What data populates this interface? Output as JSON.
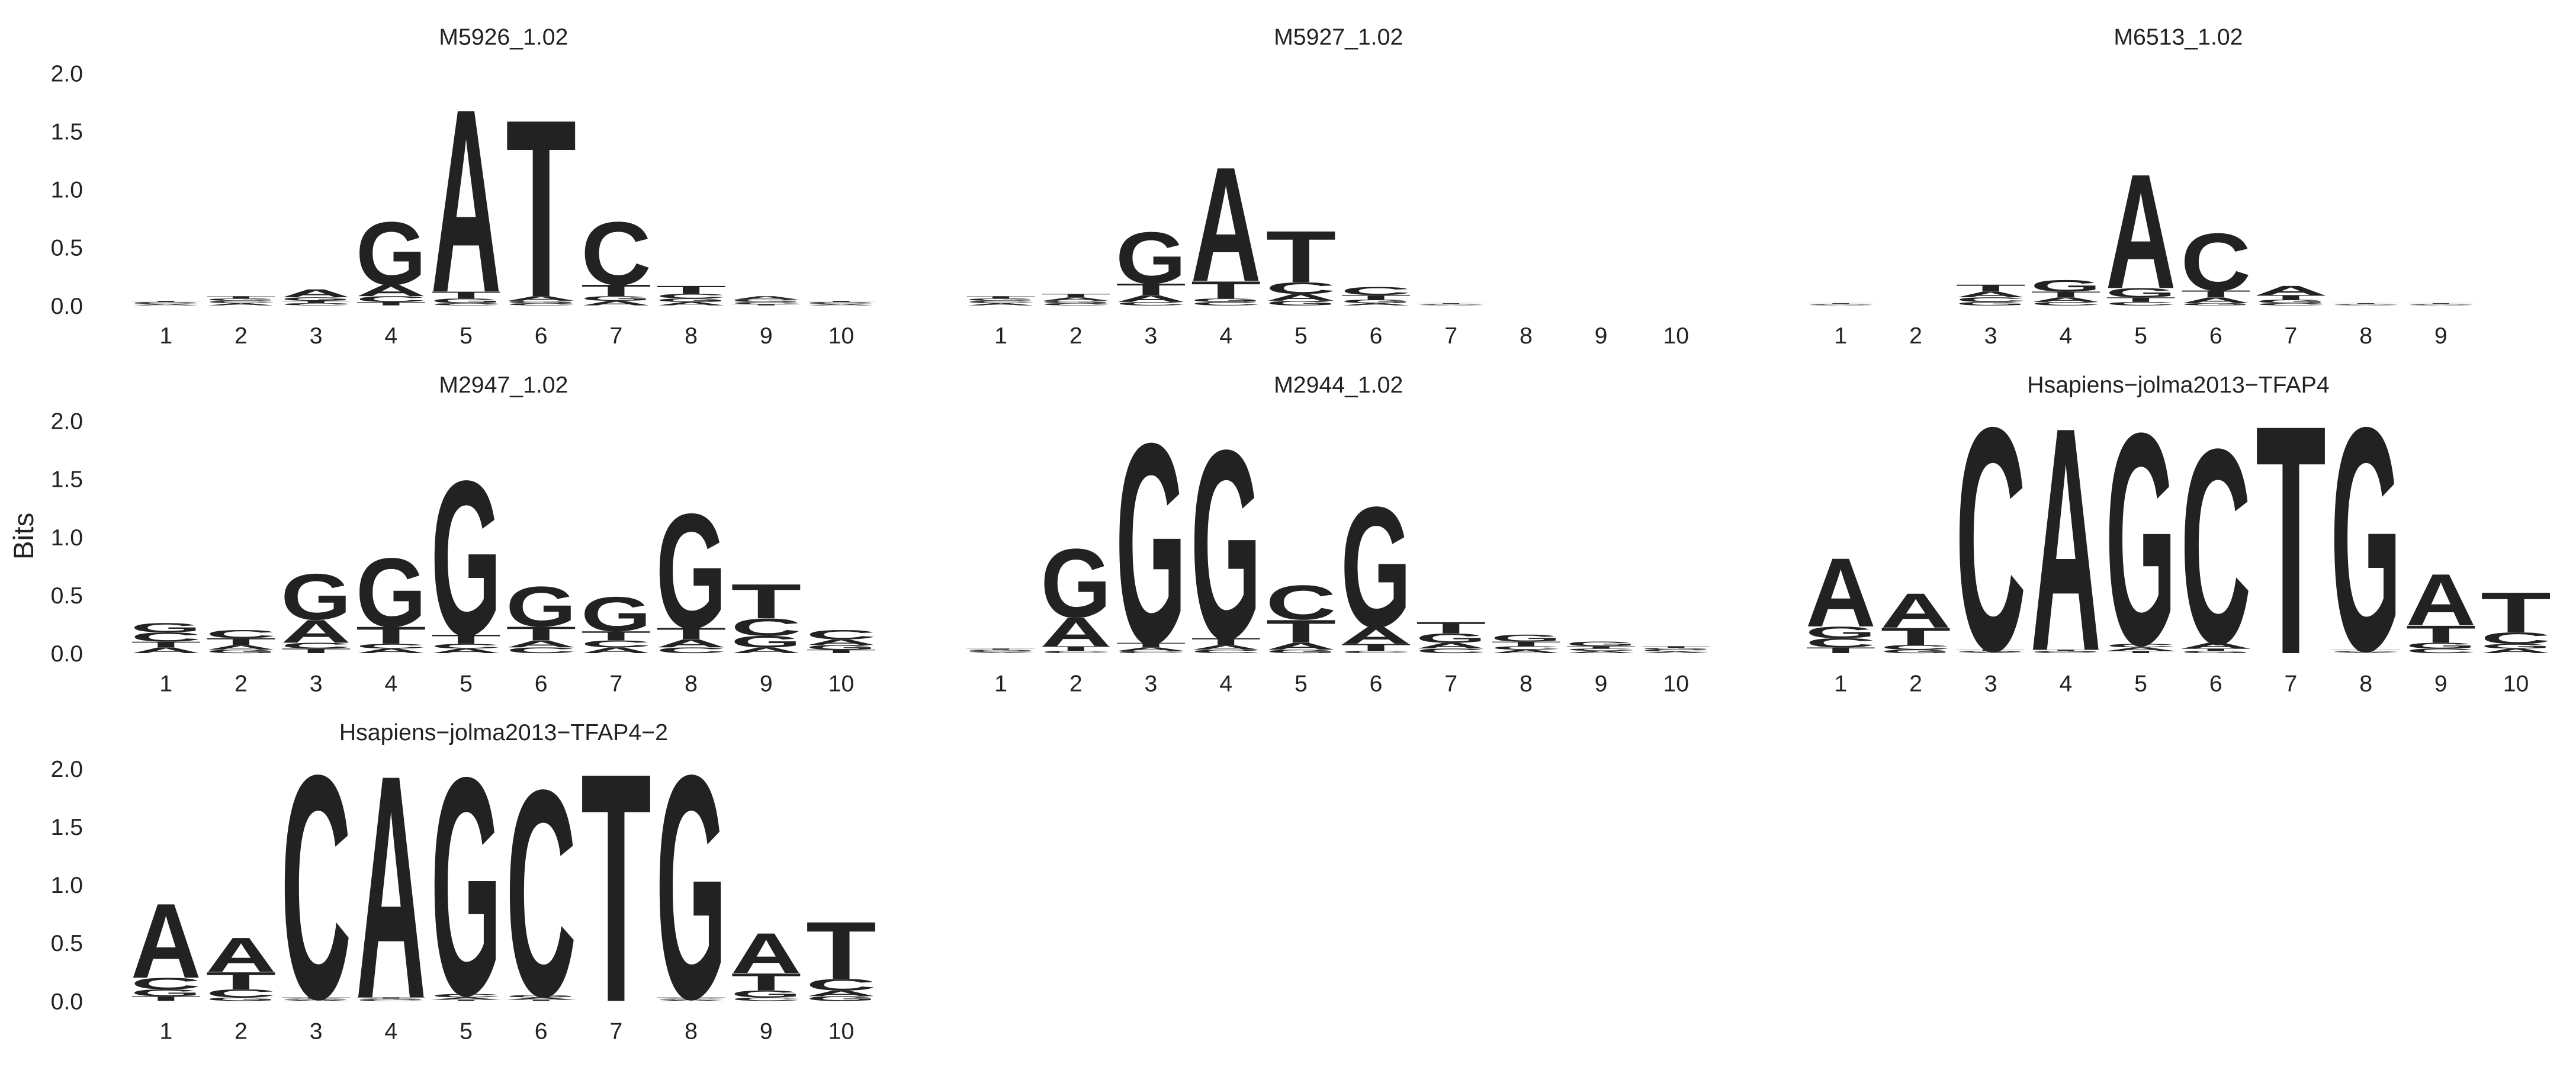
{
  "ylabel": "Bits",
  "chart_data": [
    {
      "type": "logo",
      "title": "M5926_1.02",
      "categories": [
        1,
        2,
        3,
        4,
        5,
        6,
        7,
        8,
        9,
        10
      ],
      "ylim": [
        0,
        2
      ],
      "yticks": [
        {
          "value": 0,
          "label": "0.0"
        },
        {
          "value": 0.5,
          "label": "0.5"
        },
        {
          "value": 1,
          "label": "1.0"
        },
        {
          "value": 1.5,
          "label": "1.5"
        },
        {
          "value": 2,
          "label": "2.0"
        }
      ],
      "series": [
        {
          "name": "A",
          "color": "#109648",
          "values": [
            0.01,
            0.02,
            0.07,
            0.1,
            1.6,
            0.04,
            0.04,
            0.03,
            0.03,
            0.01
          ]
        },
        {
          "name": "C",
          "color": "#255c99",
          "values": [
            0.01,
            0.02,
            0.02,
            0.05,
            0.02,
            0.02,
            0.55,
            0.04,
            0.02,
            0.01
          ]
        },
        {
          "name": "G",
          "color": "#f7b32b",
          "values": [
            0.01,
            0.02,
            0.03,
            0.55,
            0.04,
            0.02,
            0.04,
            0.03,
            0.02,
            0.01
          ]
        },
        {
          "name": "T",
          "color": "#d62839",
          "values": [
            0.01,
            0.02,
            0.02,
            0.03,
            0.06,
            1.55,
            0.1,
            0.07,
            0.01,
            0.01
          ]
        }
      ]
    },
    {
      "type": "logo",
      "title": "M5927_1.02",
      "categories": [
        1,
        2,
        3,
        4,
        5,
        6,
        7,
        8,
        9,
        10
      ],
      "ylim": [
        0,
        2
      ],
      "series": [
        {
          "name": "A",
          "color": "#109648",
          "values": [
            0.02,
            0.03,
            0.06,
            1.0,
            0.06,
            0.02,
            0.005,
            0,
            0,
            0
          ]
        },
        {
          "name": "C",
          "color": "#255c99",
          "values": [
            0.02,
            0.02,
            0.03,
            0.03,
            0.1,
            0.07,
            0.005,
            0,
            0,
            0
          ]
        },
        {
          "name": "G",
          "color": "#f7b32b",
          "values": [
            0.02,
            0.02,
            0.45,
            0.03,
            0.04,
            0.03,
            0.005,
            0,
            0,
            0
          ]
        },
        {
          "name": "T",
          "color": "#d62839",
          "values": [
            0.02,
            0.03,
            0.1,
            0.15,
            0.45,
            0.04,
            0.005,
            0,
            0,
            0
          ]
        }
      ]
    },
    {
      "type": "logo",
      "title": "M6513_1.02",
      "categories": [
        1,
        2,
        3,
        4,
        5,
        6,
        7,
        8,
        9
      ],
      "ylim": [
        0,
        2
      ],
      "series": [
        {
          "name": "A",
          "color": "#109648",
          "values": [
            0.005,
            0,
            0.05,
            0.04,
            1.0,
            0.05,
            0.08,
            0.005,
            0.005
          ]
        },
        {
          "name": "C",
          "color": "#255c99",
          "values": [
            0.005,
            0,
            0.04,
            0.03,
            0.03,
            0.5,
            0.02,
            0.005,
            0.005
          ]
        },
        {
          "name": "G",
          "color": "#f7b32b",
          "values": [
            0.005,
            0,
            0.03,
            0.1,
            0.08,
            0.02,
            0.03,
            0.005,
            0.005
          ]
        },
        {
          "name": "T",
          "color": "#d62839",
          "values": [
            0.005,
            0,
            0.06,
            0.05,
            0.04,
            0.06,
            0.04,
            0.005,
            0.005
          ]
        }
      ]
    },
    {
      "type": "logo",
      "title": "M2947_1.02",
      "categories": [
        1,
        2,
        3,
        4,
        5,
        6,
        7,
        8,
        9,
        10
      ],
      "ylim": [
        0,
        2
      ],
      "yticks": [
        {
          "value": 0,
          "label": "0.0"
        },
        {
          "value": 0.5,
          "label": "0.5"
        },
        {
          "value": 1,
          "label": "1.0"
        },
        {
          "value": 1.5,
          "label": "1.5"
        },
        {
          "value": 2,
          "label": "2.0"
        }
      ],
      "series": [
        {
          "name": "A",
          "color": "#109648",
          "values": [
            0.05,
            0.04,
            0.2,
            0.04,
            0.04,
            0.06,
            0.05,
            0.07,
            0.05,
            0.05
          ]
        },
        {
          "name": "C",
          "color": "#255c99",
          "values": [
            0.08,
            0.07,
            0.05,
            0.04,
            0.04,
            0.05,
            0.06,
            0.05,
            0.15,
            0.08
          ]
        },
        {
          "name": "G",
          "color": "#f7b32b",
          "values": [
            0.08,
            0.03,
            0.4,
            0.6,
            1.35,
            0.35,
            0.3,
            1.0,
            0.1,
            0.04
          ]
        },
        {
          "name": "T",
          "color": "#d62839",
          "values": [
            0.05,
            0.06,
            0.04,
            0.15,
            0.08,
            0.12,
            0.08,
            0.1,
            0.3,
            0.03
          ]
        }
      ]
    },
    {
      "type": "logo",
      "title": "M2944_1.02",
      "categories": [
        1,
        2,
        3,
        4,
        5,
        6,
        7,
        8,
        9,
        10
      ],
      "ylim": [
        0,
        2
      ],
      "series": [
        {
          "name": "A",
          "color": "#109648",
          "values": [
            0.01,
            0.25,
            0.03,
            0.04,
            0.06,
            0.15,
            0.05,
            0.03,
            0.02,
            0.015
          ]
        },
        {
          "name": "C",
          "color": "#255c99",
          "values": [
            0.01,
            0.02,
            0.02,
            0.03,
            0.3,
            0.02,
            0.04,
            0.03,
            0.02,
            0.015
          ]
        },
        {
          "name": "G",
          "color": "#f7b32b",
          "values": [
            0.01,
            0.6,
            1.75,
            1.65,
            0.03,
            1.05,
            0.08,
            0.06,
            0.04,
            0.015
          ]
        },
        {
          "name": "T",
          "color": "#d62839",
          "values": [
            0.01,
            0.04,
            0.04,
            0.06,
            0.2,
            0.06,
            0.1,
            0.04,
            0.02,
            0.015
          ]
        }
      ]
    },
    {
      "type": "logo",
      "title": "Hsapiens−jolma2013−TFAP4",
      "categories": [
        1,
        2,
        3,
        4,
        5,
        6,
        7,
        8,
        9,
        10
      ],
      "ylim": [
        0,
        2
      ],
      "series": [
        {
          "name": "A",
          "color": "#109648",
          "values": [
            0.6,
            0.3,
            0.01,
            1.95,
            0.03,
            0.05,
            0,
            0.01,
            0.45,
            0.04
          ]
        },
        {
          "name": "C",
          "color": "#255c99",
          "values": [
            0.08,
            0.04,
            1.95,
            0.01,
            0.03,
            1.7,
            0,
            0.01,
            0.04,
            0.1
          ]
        },
        {
          "name": "G",
          "color": "#f7b32b",
          "values": [
            0.1,
            0.03,
            0.01,
            0.01,
            1.85,
            0.02,
            0,
            1.95,
            0.05,
            0.04
          ]
        },
        {
          "name": "T",
          "color": "#d62839",
          "values": [
            0.05,
            0.15,
            0.01,
            0.01,
            0.02,
            0.02,
            2.0,
            0.01,
            0.15,
            0.35
          ]
        }
      ]
    },
    {
      "type": "logo",
      "title": "Hsapiens−jolma2013−TFAP4−2",
      "categories": [
        1,
        2,
        3,
        4,
        5,
        6,
        7,
        8,
        9,
        10
      ],
      "ylim": [
        0,
        2
      ],
      "yticks": [
        {
          "value": 0,
          "label": "0.0"
        },
        {
          "value": 0.5,
          "label": "0.5"
        },
        {
          "value": 1,
          "label": "1.0"
        },
        {
          "value": 1.5,
          "label": "1.5"
        },
        {
          "value": 2,
          "label": "2.0"
        }
      ],
      "series": [
        {
          "name": "A",
          "color": "#109648",
          "values": [
            0.65,
            0.3,
            0.01,
            1.95,
            0.02,
            0.02,
            0,
            0.01,
            0.35,
            0.05
          ]
        },
        {
          "name": "C",
          "color": "#255c99",
          "values": [
            0.1,
            0.07,
            1.95,
            0.01,
            0.03,
            1.8,
            0,
            0.01,
            0.03,
            0.1
          ]
        },
        {
          "name": "G",
          "color": "#f7b32b",
          "values": [
            0.06,
            0.03,
            0.01,
            0.01,
            1.9,
            0.02,
            0,
            1.95,
            0.06,
            0.04
          ]
        },
        {
          "name": "T",
          "color": "#d62839",
          "values": [
            0.04,
            0.15,
            0.01,
            0.01,
            0.01,
            0.01,
            2.0,
            0.01,
            0.15,
            0.5
          ]
        }
      ]
    }
  ]
}
